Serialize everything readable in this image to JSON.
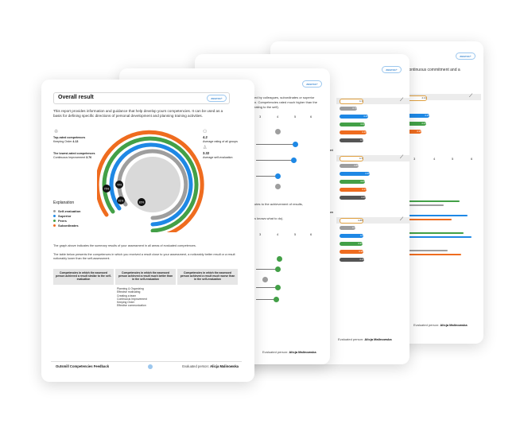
{
  "logo_text": "assess+",
  "colors": {
    "self_evaluation": "#9e9e9e",
    "superior": "#1e88e5",
    "peers": "#43a047",
    "subordinates": "#ef6c1f"
  },
  "front": {
    "title": "Overall result",
    "intro": "This report provides information and guidance that help develop yours competencies. It can be used as a basis for defining specific directions of personal development and planning training activities.",
    "top_rated_label": "Top-rated competences",
    "top_rated_value_prefix": "Keeping Order",
    "top_rated_value": "4.13",
    "lowest_label": "The lowest-rated competences",
    "lowest_value_prefix": "Continuous Improvement",
    "lowest_value": "3.76",
    "avg_all_value": "4.2",
    "avg_all_label": "Average rating of all groups",
    "avg_self_value": "3.32",
    "avg_self_label": "Average self-evaluation",
    "explanation_title": "Explanation",
    "legend": [
      "Self-evaluation",
      "Superior",
      "Peers",
      "Subordinates"
    ],
    "ring_labels": [
      "75%",
      "78%",
      "81%",
      "83%"
    ],
    "para1": "The graph above indicates the summary results of your assessment in all areas of evaluated competences.",
    "para2": "The table below presents the competences in which you received a result close to your assessment, a noticeably better result or a result noticeably lower than the self-assessment.",
    "table_headers": [
      "Competencies in which the assessed person achieved a result similar to the self-evaluation",
      "Competencies in which the assessed person achieved a result much better than in the self-evaluation",
      "Competencies in which the assessed person achieved a result much worse than in the self-evaluation"
    ],
    "better_list": [
      "Planning & Organizing",
      "Effective motivating",
      "Creating a team",
      "Continuous Improvement",
      "Keeping Order",
      "Effective communication"
    ],
    "footer_left": "Outsmill Competencies Feedback",
    "footer_right_prefix": "Evaluated person:",
    "footer_right_name": "Alicja Malinowska"
  },
  "page2": {
    "text_line1": "ed by colleagues, subordinates or superior",
    "text_line2": "n. Competencies rated much higher than the",
    "text_line3": "rating to the self).",
    "axis": [
      "3",
      "4",
      "5",
      "6"
    ],
    "axis2": [
      "3",
      "4",
      "5",
      "6"
    ],
    "mid_line1": "utes to the achievement of results,",
    "mid_line2": "s knows what to do).",
    "footer_prefix": "Evaluated person:",
    "footer_name": "Alicja Malinowska"
  },
  "page3": {
    "pill_values_a": [
      "4.1",
      "3.79",
      "4.26",
      "4.02",
      "4.16",
      "4.0"
    ],
    "pill_values_b": [
      "4.1",
      "3.89",
      "4.36",
      "4.03",
      "4.13",
      "4.15"
    ],
    "pill_values_c": [
      "3.85",
      "3.4",
      "4.0",
      "3.93",
      "3.96",
      "4.13"
    ],
    "label_a": "nt",
    "label_b": "ion",
    "footer_prefix": "Evaluated person:",
    "footer_name": "Alicja Malinowska"
  },
  "page4": {
    "header_text1": "ng continuous commitment and a",
    "header_text2": "s.",
    "pill_values": [
      "4.11",
      "4.26",
      "4.21",
      "3.96"
    ],
    "axis": [
      "3",
      "4",
      "5",
      "6"
    ],
    "footer_prefix": "Evaluated person:",
    "footer_name": "Alicja Malinowska"
  }
}
